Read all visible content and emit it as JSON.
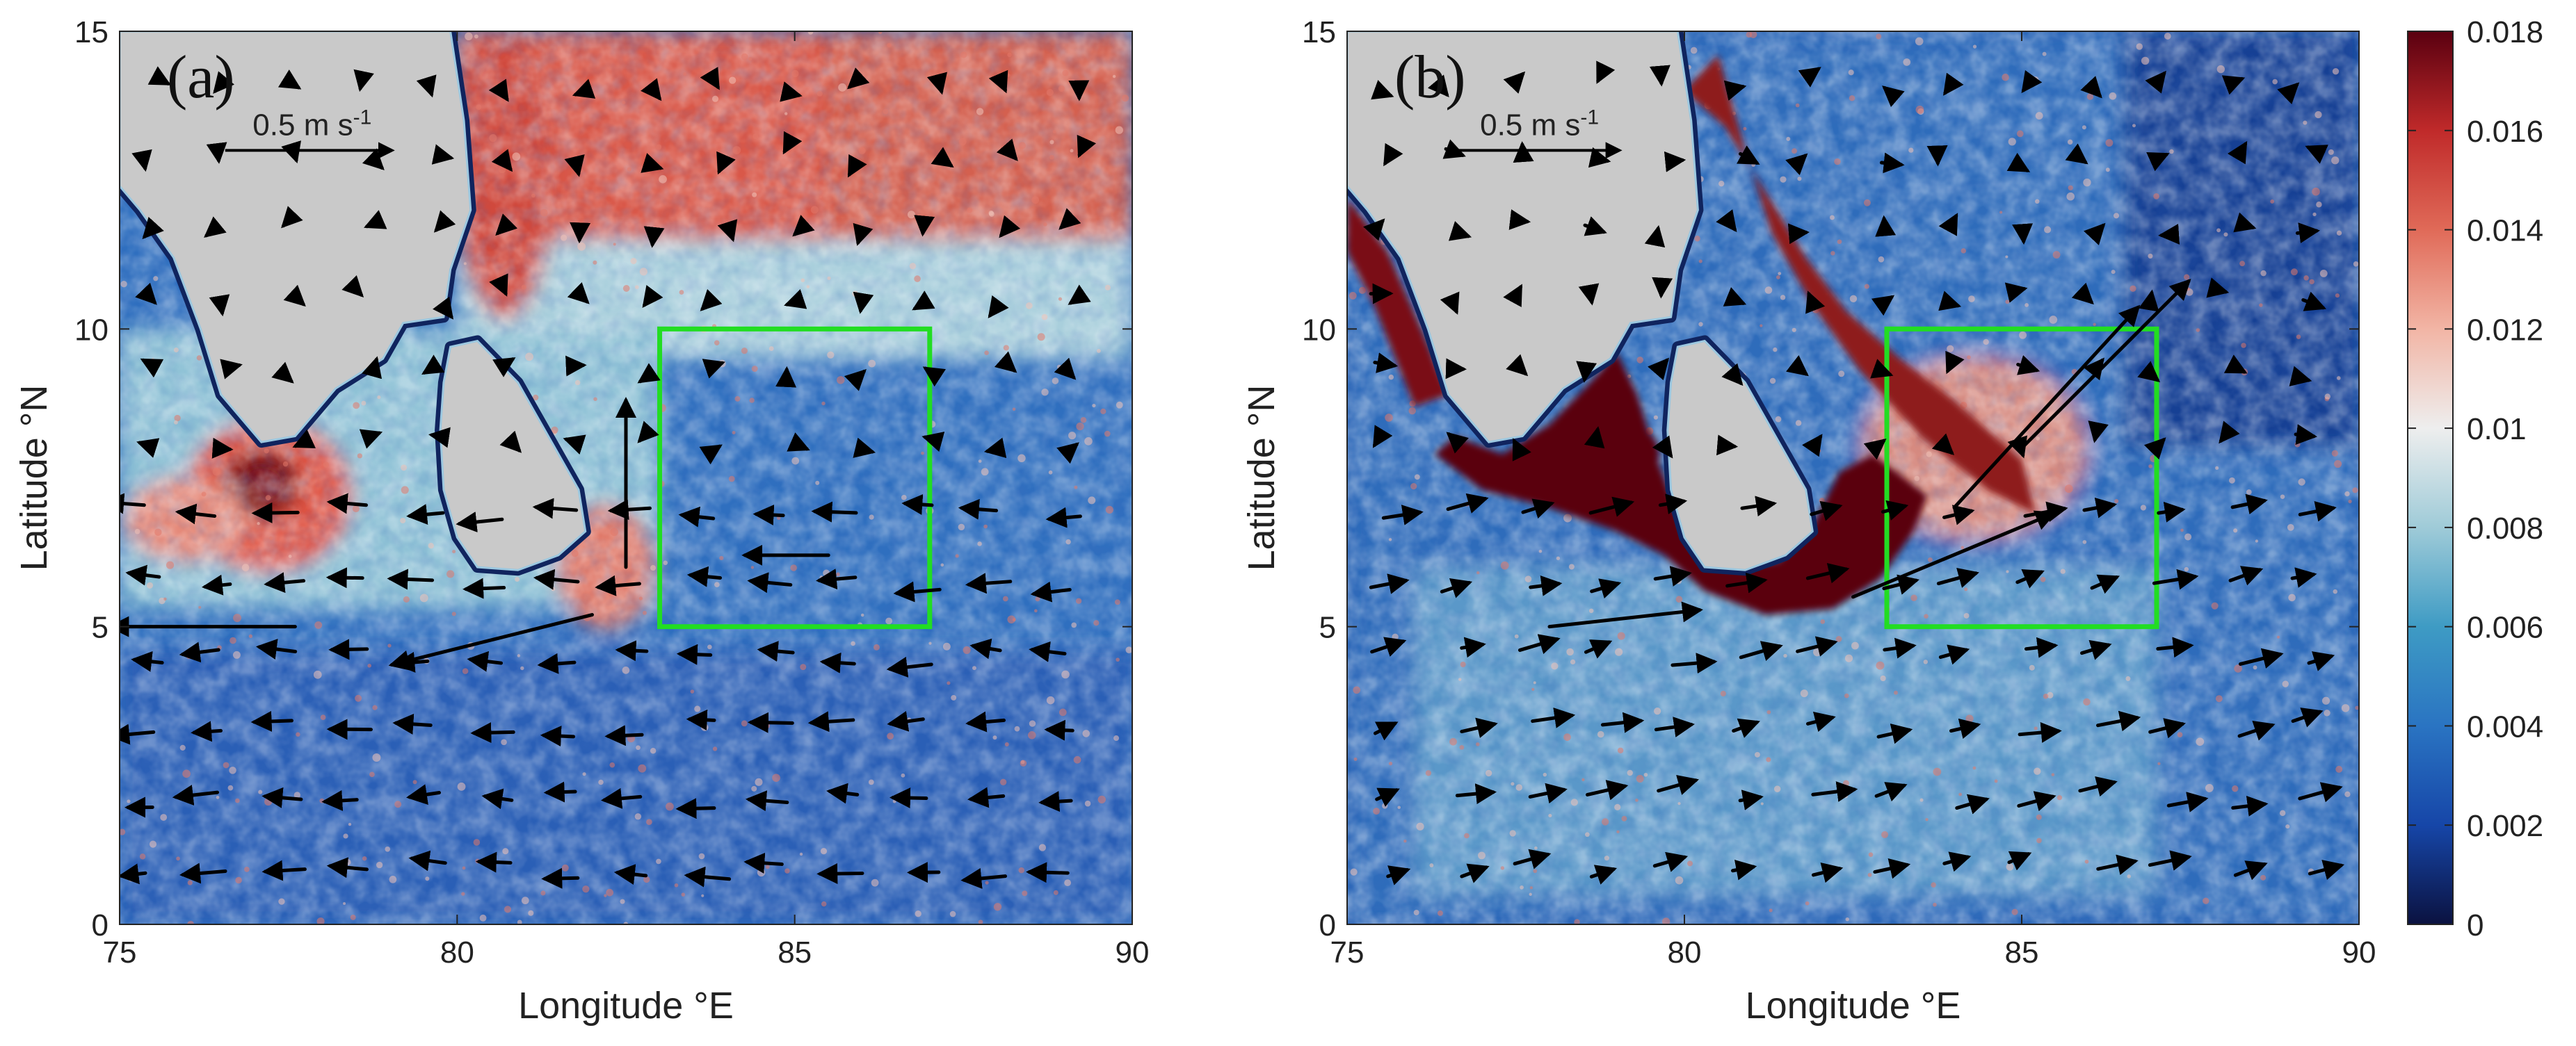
{
  "figure": {
    "panels": [
      "(a)",
      "(b)"
    ]
  },
  "chart_data": [
    {
      "type": "heatmap",
      "panel_label": "(a)",
      "xlabel": "Longitude °E",
      "ylabel": "Latitude °N",
      "xlim": [
        75,
        90
      ],
      "ylim": [
        0,
        15
      ],
      "xticks": [
        75,
        80,
        85,
        90
      ],
      "yticks": [
        0,
        5,
        10,
        15
      ],
      "scale_arrow": {
        "value": 0.5,
        "label_prefix": "0.5 m s",
        "label_sup": "-1"
      },
      "box": {
        "lon": [
          83,
          87
        ],
        "lat": [
          5,
          10
        ],
        "color": "#22dd22"
      },
      "land": [
        {
          "name": "India",
          "lonlat": [
            [
              75,
              15
            ],
            [
              79.9,
              15
            ],
            [
              80.1,
              13.5
            ],
            [
              80.2,
              12
            ],
            [
              79.9,
              11
            ],
            [
              79.8,
              10.2
            ],
            [
              79.2,
              10.1
            ],
            [
              78.9,
              9.5
            ],
            [
              78.2,
              9
            ],
            [
              77.6,
              8.2
            ],
            [
              77.1,
              8.1
            ],
            [
              76.5,
              8.9
            ],
            [
              76.2,
              10
            ],
            [
              75.8,
              11.2
            ],
            [
              75.3,
              12
            ],
            [
              75,
              12.4
            ]
          ]
        },
        {
          "name": "Sri Lanka",
          "lonlat": [
            [
              79.9,
              9.7
            ],
            [
              80.3,
              9.8
            ],
            [
              80.9,
              9.1
            ],
            [
              81.3,
              8.3
            ],
            [
              81.8,
              7.3
            ],
            [
              81.9,
              6.6
            ],
            [
              81.5,
              6.2
            ],
            [
              80.9,
              5.95
            ],
            [
              80.3,
              6.0
            ],
            [
              80.0,
              6.5
            ],
            [
              79.8,
              7.3
            ],
            [
              79.75,
              8.3
            ],
            [
              79.8,
              9.1
            ]
          ]
        }
      ],
      "vectors_sample": [
        {
          "lon": 77.6,
          "lat": 5.0,
          "u": -0.55,
          "v": 0.0
        },
        {
          "lon": 82.0,
          "lat": 5.2,
          "u": -0.6,
          "v": -0.15
        },
        {
          "lon": 82.5,
          "lat": 6.0,
          "u": 0.0,
          "v": 0.5
        },
        {
          "lon": 85.5,
          "lat": 6.2,
          "u": -0.25,
          "v": 0.0
        }
      ]
    },
    {
      "type": "heatmap",
      "panel_label": "(b)",
      "xlabel": "Longitude °E",
      "ylabel": "Latitude °N",
      "xlim": [
        75,
        90
      ],
      "ylim": [
        0,
        15
      ],
      "xticks": [
        75,
        80,
        85,
        90
      ],
      "yticks": [
        0,
        5,
        10,
        15
      ],
      "scale_arrow": {
        "value": 0.5,
        "label_prefix": "0.5 m s",
        "label_sup": "-1"
      },
      "box": {
        "lon": [
          83,
          87
        ],
        "lat": [
          5,
          10
        ],
        "color": "#22dd22"
      },
      "land": [
        {
          "name": "India",
          "lonlat": [
            [
              75,
              15
            ],
            [
              79.9,
              15
            ],
            [
              80.1,
              13.5
            ],
            [
              80.2,
              12
            ],
            [
              79.9,
              11
            ],
            [
              79.8,
              10.2
            ],
            [
              79.2,
              10.1
            ],
            [
              78.9,
              9.5
            ],
            [
              78.2,
              9
            ],
            [
              77.6,
              8.2
            ],
            [
              77.1,
              8.1
            ],
            [
              76.5,
              8.9
            ],
            [
              76.2,
              10
            ],
            [
              75.8,
              11.2
            ],
            [
              75.3,
              12
            ],
            [
              75,
              12.4
            ]
          ]
        },
        {
          "name": "Sri Lanka",
          "lonlat": [
            [
              79.9,
              9.7
            ],
            [
              80.3,
              9.8
            ],
            [
              80.9,
              9.1
            ],
            [
              81.3,
              8.3
            ],
            [
              81.8,
              7.3
            ],
            [
              81.9,
              6.6
            ],
            [
              81.5,
              6.2
            ],
            [
              80.9,
              5.95
            ],
            [
              80.3,
              6.0
            ],
            [
              80.0,
              6.5
            ],
            [
              79.8,
              7.3
            ],
            [
              79.75,
              8.3
            ],
            [
              79.8,
              9.1
            ]
          ]
        }
      ],
      "vectors_sample": [
        {
          "lon": 82.5,
          "lat": 5.5,
          "u": 0.6,
          "v": 0.25
        },
        {
          "lon": 84.0,
          "lat": 7.0,
          "u": 0.55,
          "v": 0.6
        },
        {
          "lon": 85.0,
          "lat": 8.0,
          "u": 0.5,
          "v": 0.5
        },
        {
          "lon": 78.0,
          "lat": 5.0,
          "u": 0.45,
          "v": 0.05
        }
      ]
    }
  ],
  "colorbar": {
    "min": 0,
    "max": 0.018,
    "ticks": [
      "0",
      "0.002",
      "0.004",
      "0.006",
      "0.008",
      "0.01",
      "0.012",
      "0.014",
      "0.016",
      "0.018"
    ],
    "stops": [
      "#0b1240",
      "#1646a8",
      "#2a74c2",
      "#3e9bc4",
      "#9fcbd8",
      "#eeeeee",
      "#f2b5a5",
      "#e06a58",
      "#c02a2a",
      "#5a0010"
    ]
  }
}
